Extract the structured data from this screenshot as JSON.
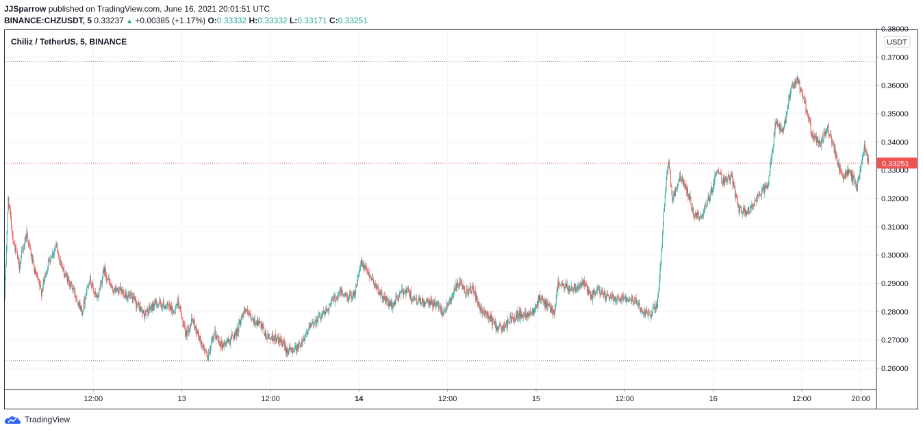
{
  "header": {
    "author": "JJSparrow",
    "published_text": "published on TradingView.com, June 16, 2021 20:01:51 UTC",
    "symbol": "BINANCE:CHZUSDT, 5",
    "last": "0.33237",
    "change": "+0.00385 (+1.17%)",
    "open_label": "O:",
    "open": "0.33332",
    "high_label": "H:",
    "high": "0.33332",
    "low_label": "L:",
    "low": "0.33171",
    "close_label": "C:",
    "close": "0.33251"
  },
  "legend_title": "Chiliz / TetherUS, 5, BINANCE",
  "footer_brand": "TradingView",
  "colors": {
    "up": "#26a69a",
    "down": "#ef5350",
    "grid": "#f0f3fa",
    "price_line": "#ef5350",
    "level_line": "#787b86",
    "last_badge": "#ef5350"
  },
  "icons": {
    "change_arrow": "triangle-up-icon",
    "footer_logo": "tradingview-cloud-icon"
  },
  "chart_data": {
    "type": "candlestick",
    "y_unit": "USDT",
    "ylim": [
      0.2525,
      0.3795
    ],
    "y_ticks": [
      "0.26000",
      "0.27000",
      "0.28000",
      "0.29000",
      "0.30000",
      "0.31000",
      "0.32000",
      "0.33000",
      "0.34000",
      "0.35000",
      "0.36000",
      "0.37000",
      "0.38000"
    ],
    "x_ticks": [
      {
        "label": "12:00",
        "bold": false,
        "t": 12
      },
      {
        "label": "13",
        "bold": false,
        "t": 24
      },
      {
        "label": "12:00",
        "bold": false,
        "t": 36
      },
      {
        "label": "14",
        "bold": true,
        "t": 48
      },
      {
        "label": "12:00",
        "bold": false,
        "t": 60
      },
      {
        "label": "15",
        "bold": false,
        "t": 72
      },
      {
        "label": "12:00",
        "bold": false,
        "t": 84
      },
      {
        "label": "16",
        "bold": false,
        "t": 96
      },
      {
        "label": "12:00",
        "bold": false,
        "t": 108
      },
      {
        "label": "20:00",
        "bold": false,
        "t": 116
      }
    ],
    "t_range": [
      0,
      117.1
    ],
    "last_price": "0.33251",
    "last_value": 0.33251,
    "level_lines": [
      0.3685,
      0.2627
    ],
    "price_path": [
      [
        0,
        0.285
      ],
      [
        0.5,
        0.32
      ],
      [
        1.2,
        0.305
      ],
      [
        2,
        0.296
      ],
      [
        3,
        0.308
      ],
      [
        4,
        0.295
      ],
      [
        5,
        0.287
      ],
      [
        6,
        0.298
      ],
      [
        7,
        0.303
      ],
      [
        8,
        0.294
      ],
      [
        9.5,
        0.287
      ],
      [
        10.5,
        0.28
      ],
      [
        11.5,
        0.292
      ],
      [
        12.5,
        0.284
      ],
      [
        13.5,
        0.295
      ],
      [
        14.5,
        0.288
      ],
      [
        16,
        0.287
      ],
      [
        17.5,
        0.284
      ],
      [
        19,
        0.279
      ],
      [
        20.5,
        0.283
      ],
      [
        22,
        0.282
      ],
      [
        23,
        0.28
      ],
      [
        23.5,
        0.284
      ],
      [
        24.5,
        0.272
      ],
      [
        25.5,
        0.277
      ],
      [
        26.5,
        0.27
      ],
      [
        27.5,
        0.264
      ],
      [
        28.5,
        0.272
      ],
      [
        29.5,
        0.268
      ],
      [
        30.5,
        0.27
      ],
      [
        31.5,
        0.273
      ],
      [
        32.5,
        0.281
      ],
      [
        33.5,
        0.277
      ],
      [
        34.5,
        0.276
      ],
      [
        35.5,
        0.271
      ],
      [
        36.5,
        0.271
      ],
      [
        37.5,
        0.269
      ],
      [
        38.5,
        0.266
      ],
      [
        40,
        0.268
      ],
      [
        41,
        0.273
      ],
      [
        42.5,
        0.278
      ],
      [
        43.5,
        0.28
      ],
      [
        44.5,
        0.284
      ],
      [
        45.5,
        0.287
      ],
      [
        46.5,
        0.285
      ],
      [
        47.5,
        0.287
      ],
      [
        48.3,
        0.297
      ],
      [
        49.5,
        0.293
      ],
      [
        51,
        0.286
      ],
      [
        52.5,
        0.282
      ],
      [
        53.5,
        0.286
      ],
      [
        54.5,
        0.288
      ],
      [
        55.5,
        0.284
      ],
      [
        57,
        0.283
      ],
      [
        58.5,
        0.283
      ],
      [
        59.5,
        0.28
      ],
      [
        60.5,
        0.285
      ],
      [
        61.5,
        0.29
      ],
      [
        62.5,
        0.287
      ],
      [
        63.5,
        0.288
      ],
      [
        64.5,
        0.28
      ],
      [
        65.5,
        0.279
      ],
      [
        66.5,
        0.275
      ],
      [
        67.5,
        0.274
      ],
      [
        68.5,
        0.277
      ],
      [
        69.5,
        0.279
      ],
      [
        70.5,
        0.279
      ],
      [
        71.5,
        0.28
      ],
      [
        72.5,
        0.285
      ],
      [
        73.5,
        0.282
      ],
      [
        74.5,
        0.28
      ],
      [
        75,
        0.29
      ],
      [
        76.5,
        0.288
      ],
      [
        77.5,
        0.289
      ],
      [
        78.5,
        0.29
      ],
      [
        79.5,
        0.285
      ],
      [
        80.5,
        0.288
      ],
      [
        81.5,
        0.285
      ],
      [
        83,
        0.285
      ],
      [
        84.5,
        0.285
      ],
      [
        85.5,
        0.284
      ],
      [
        86.5,
        0.28
      ],
      [
        87.5,
        0.279
      ],
      [
        88.5,
        0.283
      ],
      [
        89.0,
        0.3
      ],
      [
        89.5,
        0.32
      ],
      [
        90.0,
        0.335
      ],
      [
        90.5,
        0.319
      ],
      [
        91.5,
        0.328
      ],
      [
        92.5,
        0.323
      ],
      [
        93.5,
        0.314
      ],
      [
        94.5,
        0.314
      ],
      [
        95.5,
        0.32
      ],
      [
        96.5,
        0.33
      ],
      [
        97.5,
        0.326
      ],
      [
        98.5,
        0.328
      ],
      [
        99.5,
        0.316
      ],
      [
        100.5,
        0.315
      ],
      [
        101.5,
        0.318
      ],
      [
        102.5,
        0.322
      ],
      [
        103.5,
        0.325
      ],
      [
        104.5,
        0.347
      ],
      [
        105.5,
        0.343
      ],
      [
        106.5,
        0.358
      ],
      [
        107.5,
        0.362
      ],
      [
        108.5,
        0.353
      ],
      [
        109.5,
        0.342
      ],
      [
        110.5,
        0.339
      ],
      [
        111.5,
        0.345
      ],
      [
        112.5,
        0.337
      ],
      [
        113.5,
        0.327
      ],
      [
        114.5,
        0.33
      ],
      [
        115.5,
        0.324
      ],
      [
        116.5,
        0.338
      ],
      [
        117.1,
        0.3325
      ]
    ]
  }
}
